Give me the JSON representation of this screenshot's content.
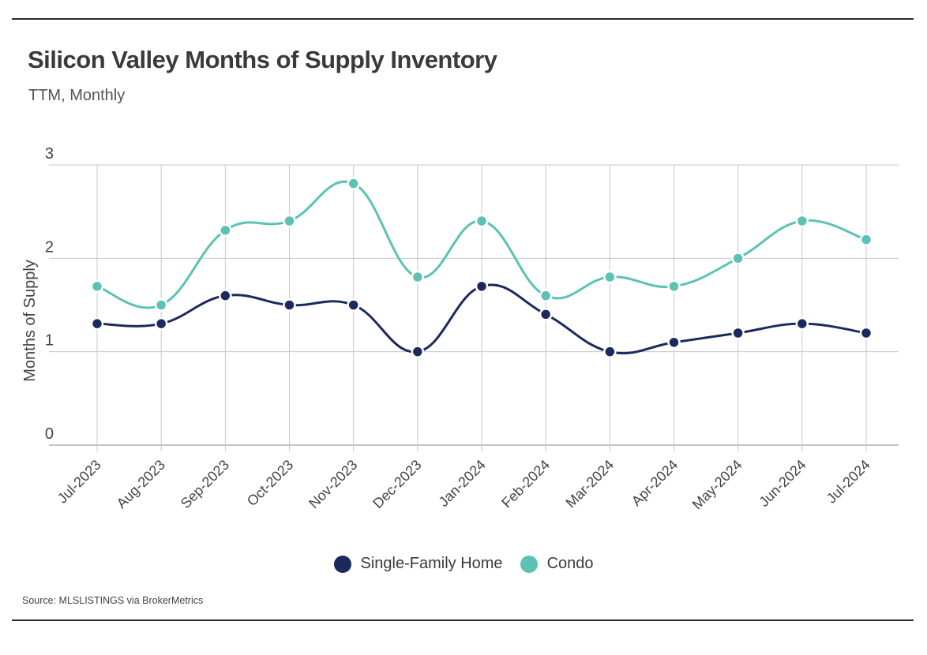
{
  "title": "Silicon Valley Months of Supply Inventory",
  "subtitle": "TTM, Monthly",
  "source": "Source:  MLSLISTINGS via BrokerMetrics",
  "colors": {
    "single_family": "#1b2a5c",
    "condo": "#5cc2b4",
    "grid": "#c8c8c8",
    "axis": "#888888"
  },
  "chart_data": {
    "type": "line",
    "ylabel": "Months of Supply",
    "ylim": [
      0,
      3
    ],
    "yticks": [
      "0",
      "1",
      "2",
      "3"
    ],
    "categories": [
      "Jul-2023",
      "Aug-2023",
      "Sep-2023",
      "Oct-2023",
      "Nov-2023",
      "Dec-2023",
      "Jan-2024",
      "Feb-2024",
      "Mar-2024",
      "Apr-2024",
      "May-2024",
      "Jun-2024",
      "Jul-2024"
    ],
    "series": [
      {
        "name": "Single-Family Home",
        "values": [
          1.3,
          1.3,
          1.6,
          1.5,
          1.5,
          1.0,
          1.7,
          1.4,
          1.0,
          1.1,
          1.2,
          1.3,
          1.2
        ]
      },
      {
        "name": "Condo",
        "values": [
          1.7,
          1.5,
          2.3,
          2.4,
          2.8,
          1.8,
          2.4,
          1.6,
          1.8,
          1.7,
          2.0,
          2.4,
          2.2
        ]
      }
    ],
    "grid": true,
    "legend_position": "bottom-center"
  }
}
